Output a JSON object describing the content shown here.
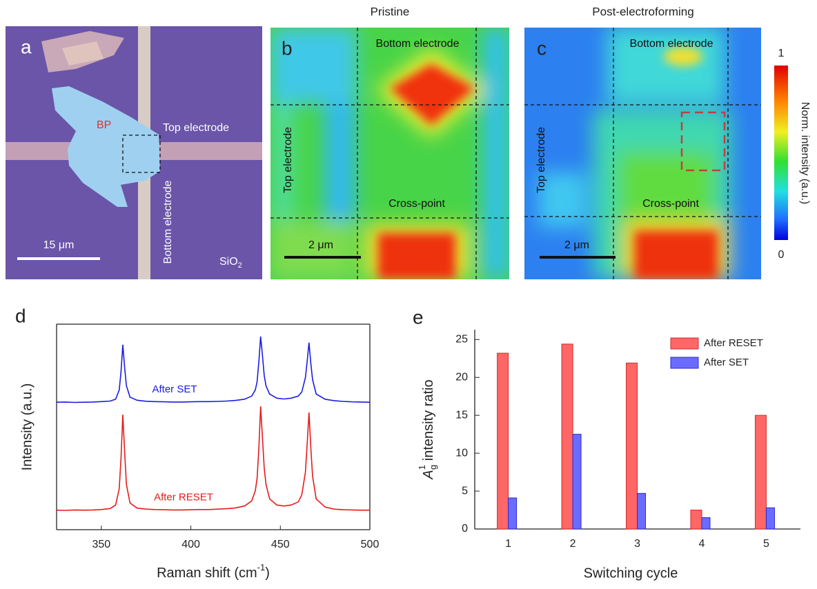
{
  "panels": {
    "a": {
      "label": "a",
      "flake": "BP",
      "top_electrode": "Top electrode",
      "bottom_electrode": "Bottom electrode",
      "scale_bar": "15 μm",
      "substrate": {
        "text": "SiO",
        "sub": "2"
      }
    },
    "b": {
      "label": "b",
      "title": "Pristine",
      "bottom_electrode": "Bottom electrode",
      "top_electrode": "Top electrode",
      "cross_point": "Cross-point",
      "scale_bar": "2 μm"
    },
    "c": {
      "label": "c",
      "title": "Post-electroforming",
      "bottom_electrode": "Bottom electrode",
      "top_electrode": "Top electrode",
      "cross_point": "Cross-point",
      "scale_bar": "2 μm"
    }
  },
  "colorbar": {
    "max": "1",
    "min": "0",
    "label": "Norm. intensity (a.u.)"
  },
  "chart_data": [
    {
      "type": "line",
      "panel": "d",
      "xlabel": {
        "text": "Raman shift (cm",
        "sup": "-1",
        "end": ")"
      },
      "ylabel": "Intensity (a.u.)",
      "xlim": [
        325,
        500
      ],
      "xticks": [
        350,
        400,
        450,
        500
      ],
      "ylim": [
        0,
        100
      ],
      "x": [
        325,
        330,
        335,
        340,
        345,
        350,
        355,
        358,
        360,
        361,
        362,
        363,
        364,
        366,
        370,
        375,
        380,
        385,
        390,
        395,
        400,
        405,
        410,
        415,
        420,
        425,
        430,
        434,
        436,
        437,
        438,
        439,
        440,
        441,
        442,
        444,
        448,
        452,
        456,
        460,
        462,
        464,
        465,
        466,
        467,
        468,
        470,
        475,
        480,
        485,
        490,
        495,
        500
      ],
      "series": [
        {
          "name": "After SET",
          "color": "#1a1ae6",
          "values": [
            62,
            62.1,
            61.9,
            62,
            62.1,
            62.3,
            62.6,
            63.5,
            68,
            77,
            90,
            79,
            70,
            64.5,
            63,
            62.5,
            62.3,
            62.2,
            62.1,
            62.1,
            62.2,
            62.3,
            62.3,
            62.4,
            62.6,
            62.9,
            63.5,
            65,
            68,
            72,
            82,
            94,
            85,
            75,
            70,
            66,
            64,
            63.6,
            64,
            65,
            67,
            74,
            82,
            91,
            81,
            73,
            66,
            63.5,
            62.8,
            62.4,
            62.2,
            62.1,
            62
          ]
        },
        {
          "name": "After RESET",
          "color": "#e61a1a",
          "values": [
            9.5,
            9.4,
            9.6,
            9.5,
            9.6,
            9.8,
            10.3,
            12,
            20,
            35,
            56,
            38,
            22,
            13,
            10.5,
            10,
            9.8,
            9.7,
            9.6,
            9.6,
            9.7,
            9.8,
            9.8,
            10,
            10.2,
            10.6,
            11.5,
            14,
            19,
            25,
            40,
            60,
            45,
            30,
            22,
            15,
            12,
            11.5,
            12,
            13.5,
            17,
            28,
            42,
            57,
            40,
            26,
            15,
            11,
            10,
            9.7,
            9.6,
            9.5,
            9.5
          ]
        }
      ]
    },
    {
      "type": "bar",
      "panel": "e",
      "xlabel": "Switching cycle",
      "ylabel": {
        "symbol": "A",
        "sup": "1",
        "sub": "g",
        "text": " intensity ratio"
      },
      "categories": [
        "1",
        "2",
        "3",
        "4",
        "5"
      ],
      "ylim": [
        0,
        26.3
      ],
      "yticks": [
        0,
        5,
        10,
        15,
        20,
        25
      ],
      "legend": "upper right",
      "series": [
        {
          "name": "After RESET",
          "color": "#ff6666",
          "edge_color": "#d42a2a",
          "values": [
            23.2,
            24.4,
            21.9,
            2.5,
            15.0
          ]
        },
        {
          "name": "After SET",
          "color": "#6b6bff",
          "edge_color": "#2a2ad0",
          "values": [
            4.1,
            12.5,
            4.7,
            1.5,
            2.8
          ]
        }
      ]
    }
  ]
}
